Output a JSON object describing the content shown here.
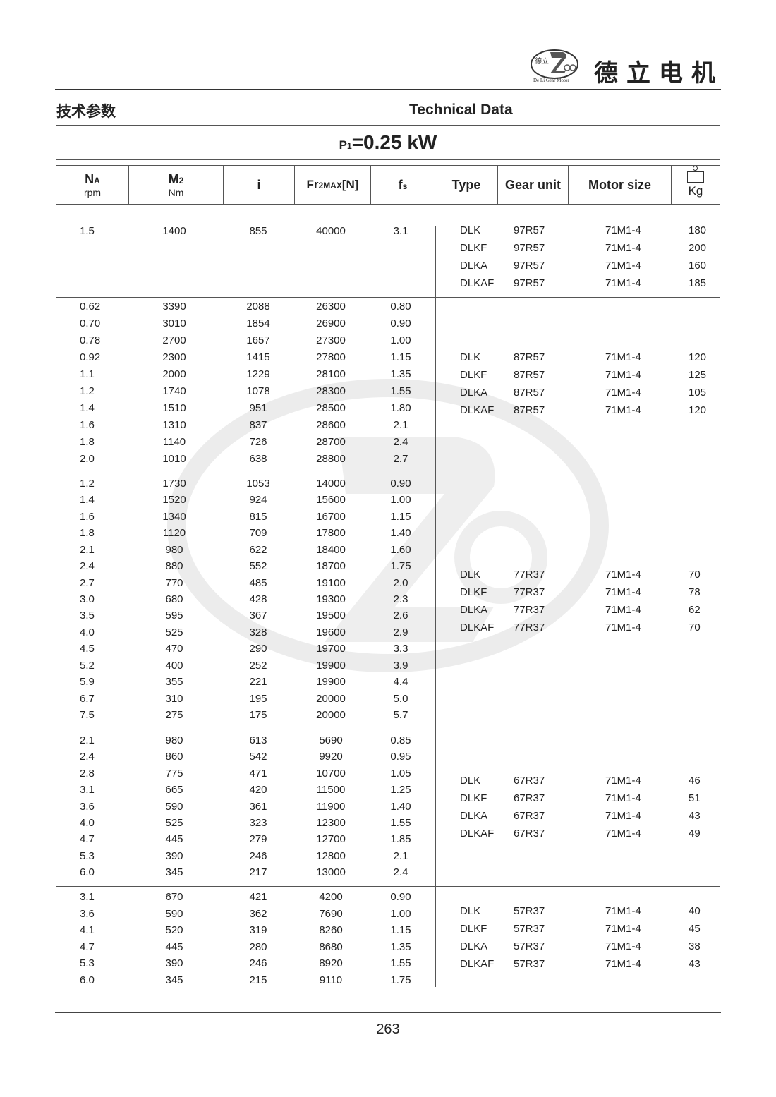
{
  "brand": {
    "name_cn": "德立电机",
    "logo_text": "De Li Gear Motor",
    "logo_chars": "德立"
  },
  "section": {
    "title_cn": "技术参数",
    "title_en": "Technical Data"
  },
  "power": {
    "label": "P",
    "sub": "1",
    "value": "=0.25 kW"
  },
  "columns": {
    "na": {
      "main": "N",
      "sub": "A",
      "unit": "rpm"
    },
    "m2": {
      "main": "M",
      "sub": "2",
      "unit": "Nm"
    },
    "i": "i",
    "fr": {
      "main": "Fr",
      "sub": "2MAX",
      "tail": "[N]"
    },
    "fs": {
      "main": "f",
      "sub": "s"
    },
    "type": "Type",
    "gear_unit": "Gear unit",
    "motor_size": "Motor size",
    "kg": "Kg",
    "kg_icon": "weight-icon"
  },
  "groups": [
    {
      "rows": [
        [
          "1.5",
          "1400",
          "855",
          "40000",
          "3.1"
        ]
      ],
      "units": [
        [
          "DLK",
          "97R57",
          "71M1-4",
          "180"
        ],
        [
          "DLKF",
          "97R57",
          "71M1-4",
          "200"
        ],
        [
          "DLKA",
          "97R57",
          "71M1-4",
          "160"
        ],
        [
          "DLKAF",
          "97R57",
          "71M1-4",
          "185"
        ]
      ]
    },
    {
      "rows": [
        [
          "0.62",
          "3390",
          "2088",
          "26300",
          "0.80"
        ],
        [
          "0.70",
          "3010",
          "1854",
          "26900",
          "0.90"
        ],
        [
          "0.78",
          "2700",
          "1657",
          "27300",
          "1.00"
        ],
        [
          "0.92",
          "2300",
          "1415",
          "27800",
          "1.15"
        ],
        [
          "1.1",
          "2000",
          "1229",
          "28100",
          "1.35"
        ],
        [
          "1.2",
          "1740",
          "1078",
          "28300",
          "1.55"
        ],
        [
          "1.4",
          "1510",
          "951",
          "28500",
          "1.80"
        ],
        [
          "1.6",
          "1310",
          "837",
          "28600",
          "2.1"
        ],
        [
          "1.8",
          "1140",
          "726",
          "28700",
          "2.4"
        ],
        [
          "2.0",
          "1010",
          "638",
          "28800",
          "2.7"
        ]
      ],
      "units": [
        [
          "DLK",
          "87R57",
          "71M1-4",
          "120"
        ],
        [
          "DLKF",
          "87R57",
          "71M1-4",
          "125"
        ],
        [
          "DLKA",
          "87R57",
          "71M1-4",
          "105"
        ],
        [
          "DLKAF",
          "87R57",
          "71M1-4",
          "120"
        ]
      ]
    },
    {
      "rows": [
        [
          "1.2",
          "1730",
          "1053",
          "14000",
          "0.90"
        ],
        [
          "1.4",
          "1520",
          "924",
          "15600",
          "1.00"
        ],
        [
          "1.6",
          "1340",
          "815",
          "16700",
          "1.15"
        ],
        [
          "1.8",
          "1120",
          "709",
          "17800",
          "1.40"
        ],
        [
          "2.1",
          "980",
          "622",
          "18400",
          "1.60"
        ],
        [
          "2.4",
          "880",
          "552",
          "18700",
          "1.75"
        ],
        [
          "2.7",
          "770",
          "485",
          "19100",
          "2.0"
        ],
        [
          "3.0",
          "680",
          "428",
          "19300",
          "2.3"
        ],
        [
          "3.5",
          "595",
          "367",
          "19500",
          "2.6"
        ],
        [
          "4.0",
          "525",
          "328",
          "19600",
          "2.9"
        ],
        [
          "4.5",
          "470",
          "290",
          "19700",
          "3.3"
        ],
        [
          "5.2",
          "400",
          "252",
          "19900",
          "3.9"
        ],
        [
          "5.9",
          "355",
          "221",
          "19900",
          "4.4"
        ],
        [
          "6.7",
          "310",
          "195",
          "20000",
          "5.0"
        ],
        [
          "7.5",
          "275",
          "175",
          "20000",
          "5.7"
        ]
      ],
      "units": [
        [
          "DLK",
          "77R37",
          "71M1-4",
          "70"
        ],
        [
          "DLKF",
          "77R37",
          "71M1-4",
          "78"
        ],
        [
          "DLKA",
          "77R37",
          "71M1-4",
          "62"
        ],
        [
          "DLKAF",
          "77R37",
          "71M1-4",
          "70"
        ]
      ]
    },
    {
      "rows": [
        [
          "2.1",
          "980",
          "613",
          "5690",
          "0.85"
        ],
        [
          "2.4",
          "860",
          "542",
          "9920",
          "0.95"
        ],
        [
          "2.8",
          "775",
          "471",
          "10700",
          "1.05"
        ],
        [
          "3.1",
          "665",
          "420",
          "11500",
          "1.25"
        ],
        [
          "3.6",
          "590",
          "361",
          "11900",
          "1.40"
        ],
        [
          "4.0",
          "525",
          "323",
          "12300",
          "1.55"
        ],
        [
          "4.7",
          "445",
          "279",
          "12700",
          "1.85"
        ],
        [
          "5.3",
          "390",
          "246",
          "12800",
          "2.1"
        ],
        [
          "6.0",
          "345",
          "217",
          "13000",
          "2.4"
        ]
      ],
      "units": [
        [
          "DLK",
          "67R37",
          "71M1-4",
          "46"
        ],
        [
          "DLKF",
          "67R37",
          "71M1-4",
          "51"
        ],
        [
          "DLKA",
          "67R37",
          "71M1-4",
          "43"
        ],
        [
          "DLKAF",
          "67R37",
          "71M1-4",
          "49"
        ]
      ]
    },
    {
      "rows": [
        [
          "3.1",
          "670",
          "421",
          "4200",
          "0.90"
        ],
        [
          "3.6",
          "590",
          "362",
          "7690",
          "1.00"
        ],
        [
          "4.1",
          "520",
          "319",
          "8260",
          "1.15"
        ],
        [
          "4.7",
          "445",
          "280",
          "8680",
          "1.35"
        ],
        [
          "5.3",
          "390",
          "246",
          "8920",
          "1.55"
        ],
        [
          "6.0",
          "345",
          "215",
          "9110",
          "1.75"
        ]
      ],
      "units": [
        [
          "DLK",
          "57R37",
          "71M1-4",
          "40"
        ],
        [
          "DLKF",
          "57R37",
          "71M1-4",
          "45"
        ],
        [
          "DLKA",
          "57R37",
          "71M1-4",
          "38"
        ],
        [
          "DLKAF",
          "57R37",
          "71M1-4",
          "43"
        ]
      ]
    }
  ],
  "footer": {
    "page_number": "263"
  }
}
